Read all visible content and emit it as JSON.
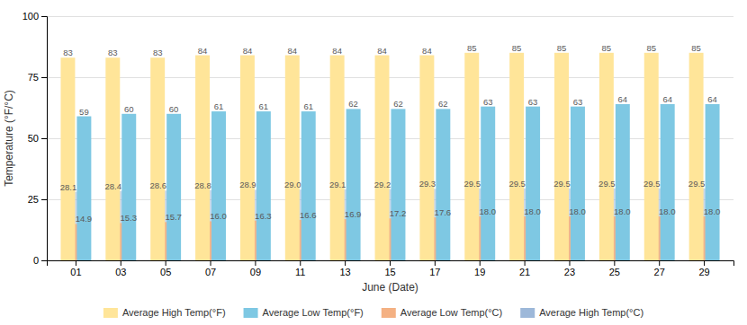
{
  "chart_data": {
    "type": "bar",
    "categories": [
      "01",
      "03",
      "05",
      "07",
      "09",
      "11",
      "13",
      "15",
      "17",
      "19",
      "21",
      "23",
      "25",
      "27",
      "29"
    ],
    "xlabel": "June (Date)",
    "ylabel": "Temperature (°F/°C)",
    "ylim": [
      0,
      100
    ],
    "yticks": [
      0,
      25,
      50,
      75,
      100
    ],
    "grid": true,
    "data_labels": true,
    "legend": "bottom",
    "series": [
      {
        "name": "Average High Temp(°F)",
        "color": "#FFE599",
        "values": [
          83,
          83,
          83,
          84,
          84,
          84,
          84,
          84,
          84,
          85,
          85,
          85,
          85,
          85,
          85
        ]
      },
      {
        "name": "Average Low Temp(°F)",
        "color": "#7EC8E3",
        "values": [
          59,
          60,
          60,
          61,
          61,
          61,
          62,
          62,
          62,
          63,
          63,
          63,
          64,
          64,
          64
        ]
      },
      {
        "name": "Average Low Temp(°C)",
        "color": "#F4B183",
        "values": [
          14.9,
          15.3,
          15.7,
          16.0,
          16.3,
          16.6,
          16.9,
          17.2,
          17.6,
          18.0,
          18.0,
          18.0,
          18.0,
          18.0,
          18.0
        ],
        "value_labels": [
          "14.9",
          "15.3",
          "15.7",
          "16.0",
          "16.3",
          "16.6",
          "16.9",
          "17.2",
          "17.6",
          "18.0",
          "18.0",
          "18.0",
          "18.0",
          "18.0",
          "18.0"
        ]
      },
      {
        "name": "Average High Temp(°C)",
        "color": "#9DB8D9",
        "values": [
          28.1,
          28.4,
          28.6,
          28.8,
          28.9,
          29.0,
          29.1,
          29.2,
          29.3,
          29.5,
          29.5,
          29.5,
          29.5,
          29.5,
          29.5
        ],
        "value_labels": [
          "28.1",
          "28.4",
          "28.6",
          "28.8",
          "28.9",
          "29.0",
          "29.1",
          "29.2",
          "29.3",
          "29.5",
          "29.5",
          "29.5",
          "29.5",
          "29.5",
          "29.5"
        ]
      }
    ]
  }
}
